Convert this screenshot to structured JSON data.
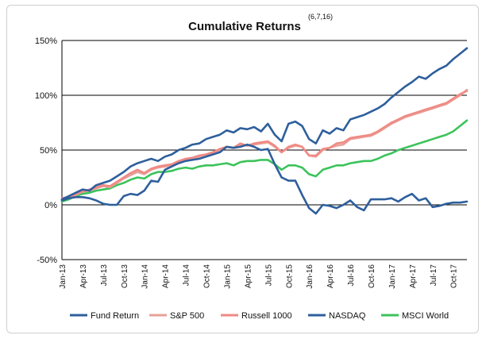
{
  "chart_data": {
    "type": "line",
    "title": "Cumulative Returns",
    "title_superscript": "(6,7,16)",
    "xlabel": "",
    "ylabel": "",
    "ylim": [
      -50,
      150
    ],
    "y_ticks": [
      "-50%",
      "0%",
      "50%",
      "100%",
      "150%"
    ],
    "y_tick_values": [
      -50,
      0,
      50,
      100,
      150
    ],
    "x_tick_labels": [
      "Jan-13",
      "Apr-13",
      "Jul-13",
      "Oct-13",
      "Jan-14",
      "Apr-14",
      "Jul-14",
      "Oct-14",
      "Jan-15",
      "Apr-15",
      "Jul-15",
      "Oct-15",
      "Jan-16",
      "Apr-16",
      "Jul-16",
      "Oct-16",
      "Jan-17",
      "Apr-17",
      "Jul-17",
      "Oct-17"
    ],
    "x": [
      "Jan-13",
      "Feb-13",
      "Mar-13",
      "Apr-13",
      "May-13",
      "Jun-13",
      "Jul-13",
      "Aug-13",
      "Sep-13",
      "Oct-13",
      "Nov-13",
      "Dec-13",
      "Jan-14",
      "Feb-14",
      "Mar-14",
      "Apr-14",
      "May-14",
      "Jun-14",
      "Jul-14",
      "Aug-14",
      "Sep-14",
      "Oct-14",
      "Nov-14",
      "Dec-14",
      "Jan-15",
      "Feb-15",
      "Mar-15",
      "Apr-15",
      "May-15",
      "Jun-15",
      "Jul-15",
      "Aug-15",
      "Sep-15",
      "Oct-15",
      "Nov-15",
      "Dec-15",
      "Jan-16",
      "Feb-16",
      "Mar-16",
      "Apr-16",
      "May-16",
      "Jun-16",
      "Jul-16",
      "Aug-16",
      "Sep-16",
      "Oct-16",
      "Nov-16",
      "Dec-16",
      "Jan-17",
      "Feb-17",
      "Mar-17",
      "Apr-17",
      "May-17",
      "Jun-17",
      "Jul-17",
      "Aug-17",
      "Sep-17",
      "Oct-17",
      "Nov-17",
      "Dec-17"
    ],
    "gridlines": "horizontal",
    "legend_position": "bottom",
    "series": [
      {
        "name": "Fund Return",
        "color": "#2e5f9c",
        "values": [
          4,
          6,
          7,
          7,
          6,
          4,
          1,
          0,
          0,
          8,
          10,
          9,
          13,
          22,
          21,
          32,
          35,
          38,
          40,
          41,
          42,
          44,
          46,
          48,
          53,
          52,
          53,
          55,
          53,
          50,
          51,
          37,
          25,
          22,
          22,
          9,
          -3,
          -8,
          0,
          -1,
          -3,
          0,
          4,
          -2,
          -5,
          5,
          5,
          5,
          6,
          3,
          7,
          10,
          4,
          6,
          -2,
          -1,
          1,
          2,
          2,
          3
        ]
      },
      {
        "name": "S&P 500",
        "color": "#e8a09a",
        "values": [
          5,
          7,
          9,
          12,
          13,
          15,
          17,
          16,
          20,
          24,
          27,
          30,
          28,
          32,
          34,
          35,
          36,
          39,
          41,
          42,
          44,
          46,
          48,
          50,
          53,
          52,
          55,
          54,
          55,
          56,
          57,
          53,
          48,
          52,
          54,
          53,
          45,
          44,
          50,
          52,
          54,
          55,
          60,
          61,
          62,
          63,
          66,
          70,
          74,
          77,
          80,
          82,
          84,
          86,
          88,
          90,
          92,
          96,
          100,
          105
        ]
      },
      {
        "name": "Russell 1000",
        "color": "#f08a84",
        "values": [
          6,
          7,
          10,
          12,
          14,
          16,
          18,
          17,
          21,
          25,
          29,
          32,
          29,
          33,
          35,
          36,
          37,
          40,
          42,
          43,
          45,
          46,
          48,
          51,
          53,
          52,
          56,
          54,
          56,
          57,
          58,
          54,
          48,
          53,
          55,
          53,
          45,
          45,
          51,
          52,
          56,
          57,
          61,
          62,
          63,
          64,
          67,
          71,
          75,
          78,
          81,
          83,
          85,
          87,
          89,
          91,
          93,
          97,
          101,
          104
        ]
      },
      {
        "name": "NASDAQ",
        "color": "#2e5f9c",
        "values": [
          5,
          8,
          11,
          14,
          13,
          18,
          20,
          22,
          26,
          30,
          35,
          38,
          40,
          42,
          40,
          44,
          46,
          50,
          52,
          55,
          56,
          60,
          62,
          64,
          68,
          66,
          70,
          69,
          71,
          67,
          74,
          64,
          58,
          74,
          76,
          72,
          60,
          56,
          68,
          65,
          70,
          68,
          78,
          80,
          82,
          85,
          88,
          92,
          98,
          103,
          108,
          112,
          117,
          115,
          120,
          124,
          127,
          133,
          138,
          143
        ]
      },
      {
        "name": "MSCI World",
        "color": "#3cc35b",
        "values": [
          3,
          5,
          8,
          10,
          11,
          13,
          14,
          15,
          18,
          20,
          23,
          25,
          24,
          28,
          30,
          30,
          31,
          33,
          34,
          33,
          35,
          36,
          36,
          37,
          38,
          36,
          39,
          40,
          40,
          41,
          41,
          37,
          32,
          36,
          36,
          34,
          28,
          26,
          32,
          34,
          36,
          36,
          38,
          39,
          40,
          40,
          42,
          45,
          47,
          50,
          52,
          54,
          56,
          58,
          60,
          62,
          64,
          67,
          72,
          77
        ]
      }
    ]
  }
}
